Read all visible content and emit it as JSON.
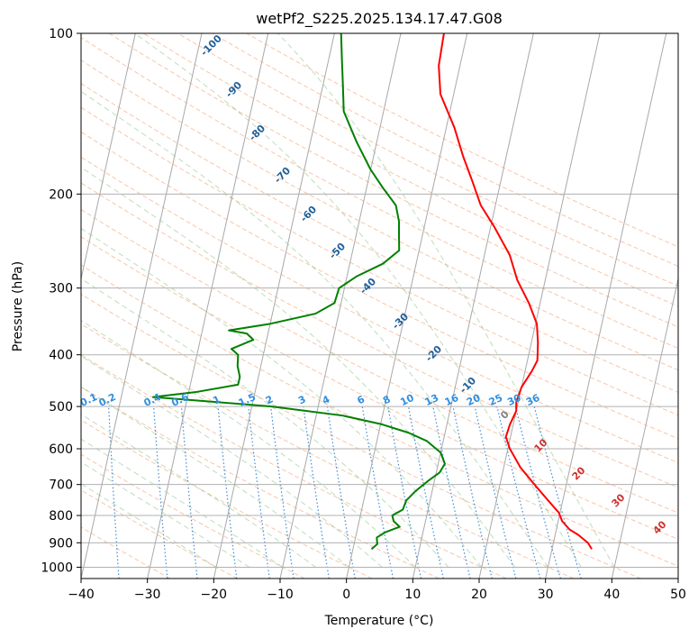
{
  "chart_data": {
    "type": "line",
    "title": "wetPf2_S225.2025.134.17.47.G08",
    "xlabel": "Temperature (°C)",
    "ylabel": "Pressure (hPa)",
    "xlim": [
      -40,
      50
    ],
    "ylim": [
      1050,
      100
    ],
    "y_scale": "log",
    "grid": true,
    "x_ticks": [
      -40,
      -30,
      -20,
      -10,
      0,
      10,
      20,
      30,
      40,
      50
    ],
    "y_ticks": [
      100,
      200,
      300,
      400,
      500,
      600,
      700,
      800,
      900,
      1000
    ],
    "series": [
      {
        "color": "#ff0000",
        "values": [
          {
            "p": 925,
            "t": 36.0
          },
          {
            "p": 900,
            "t": 35.2
          },
          {
            "p": 870,
            "t": 33.5
          },
          {
            "p": 850,
            "t": 32.0
          },
          {
            "p": 820,
            "t": 30.6
          },
          {
            "p": 790,
            "t": 29.8
          },
          {
            "p": 750,
            "t": 27.8
          },
          {
            "p": 700,
            "t": 25.2
          },
          {
            "p": 650,
            "t": 22.5
          },
          {
            "p": 600,
            "t": 20.3
          },
          {
            "p": 570,
            "t": 19.3
          },
          {
            "p": 540,
            "t": 19.5
          },
          {
            "p": 510,
            "t": 20.0
          },
          {
            "p": 490,
            "t": 19.7
          },
          {
            "p": 460,
            "t": 20.0
          },
          {
            "p": 430,
            "t": 21.0
          },
          {
            "p": 410,
            "t": 21.5
          },
          {
            "p": 380,
            "t": 21.0
          },
          {
            "p": 350,
            "t": 20.2
          },
          {
            "p": 320,
            "t": 18.3
          },
          {
            "p": 290,
            "t": 15.8
          },
          {
            "p": 260,
            "t": 13.8
          },
          {
            "p": 230,
            "t": 10.5
          },
          {
            "p": 210,
            "t": 7.8
          },
          {
            "p": 190,
            "t": 5.8
          },
          {
            "p": 170,
            "t": 3.5
          },
          {
            "p": 150,
            "t": 1.2
          },
          {
            "p": 130,
            "t": -2.0
          },
          {
            "p": 115,
            "t": -3.2
          },
          {
            "p": 100,
            "t": -3.5
          }
        ]
      },
      {
        "color": "#008000",
        "values": [
          {
            "p": 925,
            "t": 2.8
          },
          {
            "p": 905,
            "t": 3.5
          },
          {
            "p": 880,
            "t": 3.2
          },
          {
            "p": 860,
            "t": 4.3
          },
          {
            "p": 840,
            "t": 6.3
          },
          {
            "p": 820,
            "t": 5.2
          },
          {
            "p": 800,
            "t": 4.8
          },
          {
            "p": 780,
            "t": 6.2
          },
          {
            "p": 750,
            "t": 6.4
          },
          {
            "p": 720,
            "t": 7.5
          },
          {
            "p": 690,
            "t": 9.0
          },
          {
            "p": 665,
            "t": 10.5
          },
          {
            "p": 640,
            "t": 11.0
          },
          {
            "p": 610,
            "t": 10.0
          },
          {
            "p": 580,
            "t": 7.5
          },
          {
            "p": 560,
            "t": 4.5
          },
          {
            "p": 540,
            "t": 0.2
          },
          {
            "p": 520,
            "t": -6.0
          },
          {
            "p": 500,
            "t": -17.0
          },
          {
            "p": 490,
            "t": -26.0
          },
          {
            "p": 480,
            "t": -35.2
          },
          {
            "p": 470,
            "t": -29.0
          },
          {
            "p": 455,
            "t": -22.8
          },
          {
            "p": 440,
            "t": -22.8
          },
          {
            "p": 420,
            "t": -23.5
          },
          {
            "p": 400,
            "t": -23.8
          },
          {
            "p": 390,
            "t": -25.0
          },
          {
            "p": 375,
            "t": -22.0
          },
          {
            "p": 365,
            "t": -23.2
          },
          {
            "p": 360,
            "t": -26.0
          },
          {
            "p": 350,
            "t": -20.0
          },
          {
            "p": 335,
            "t": -13.5
          },
          {
            "p": 320,
            "t": -11.0
          },
          {
            "p": 300,
            "t": -10.8
          },
          {
            "p": 285,
            "t": -8.5
          },
          {
            "p": 270,
            "t": -5.0
          },
          {
            "p": 255,
            "t": -3.0
          },
          {
            "p": 240,
            "t": -3.5
          },
          {
            "p": 225,
            "t": -4.0
          },
          {
            "p": 210,
            "t": -5.0
          },
          {
            "p": 195,
            "t": -7.5
          },
          {
            "p": 180,
            "t": -10.0
          },
          {
            "p": 160,
            "t": -13.0
          },
          {
            "p": 140,
            "t": -16.0
          },
          {
            "p": 125,
            "t": -17.0
          },
          {
            "p": 112,
            "t": -18.0
          },
          {
            "p": 100,
            "t": -19.0
          }
        ]
      }
    ],
    "isotherm_labels": [
      "-100",
      "-90",
      "-80",
      "-70",
      "-60",
      "-50",
      "-40",
      "-30",
      "-20",
      "-10",
      "0",
      "10",
      "20",
      "30",
      "40"
    ],
    "mixing_ratio_labels": [
      "0.1",
      "0.2",
      "0.4",
      "0.6",
      "1",
      "1.5",
      "2",
      "3",
      "4",
      "6",
      "8",
      "10",
      "13",
      "16",
      "20",
      "25",
      "30",
      "36"
    ]
  }
}
